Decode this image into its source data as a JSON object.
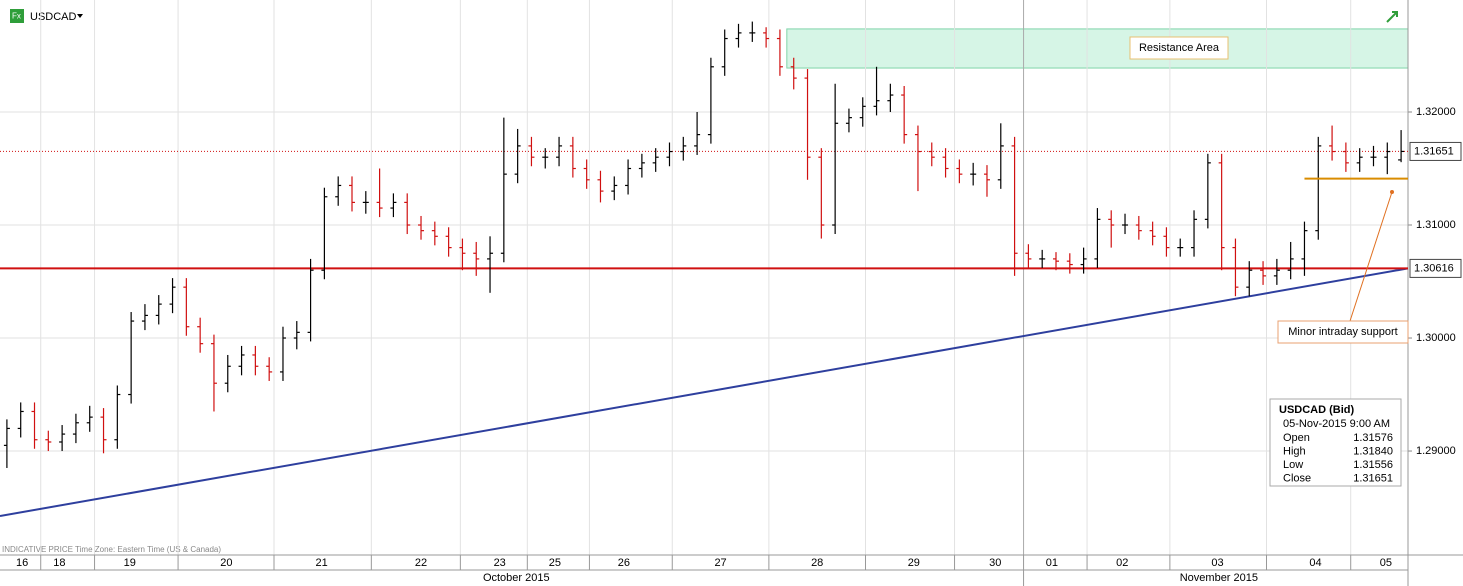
{
  "chart_data": {
    "type": "ohlc",
    "symbol": "USDCAD",
    "footnote": "INDICATIVE PRICE   Time Zone: Eastern Time (US & Canada)",
    "up_color": "#000000",
    "down_color": "#d01010",
    "ylim": [
      1.2808,
      1.32991
    ],
    "xlim": [
      -0.5,
      101.5
    ],
    "yticks": [
      {
        "value": 1.29,
        "label": "1.29000"
      },
      {
        "value": 1.3,
        "label": "1.30000"
      },
      {
        "value": 1.31,
        "label": "1.31000"
      },
      {
        "value": 1.32,
        "label": "1.32000"
      }
    ],
    "grid": true,
    "xticks": [
      {
        "value": 1.1,
        "label": "16"
      },
      {
        "value": 3.8,
        "label": "18"
      },
      {
        "value": 8.9,
        "label": "19"
      },
      {
        "value": 15.9,
        "label": "20"
      },
      {
        "value": 22.8,
        "label": "21"
      },
      {
        "value": 30.0,
        "label": "22"
      },
      {
        "value": 35.7,
        "label": "23"
      },
      {
        "value": 39.7,
        "label": "25"
      },
      {
        "value": 44.7,
        "label": "26"
      },
      {
        "value": 51.7,
        "label": "27"
      },
      {
        "value": 58.7,
        "label": "28"
      },
      {
        "value": 65.7,
        "label": "29"
      },
      {
        "value": 71.6,
        "label": "30"
      },
      {
        "value": 75.7,
        "label": "01"
      },
      {
        "value": 80.8,
        "label": "02"
      },
      {
        "value": 87.7,
        "label": "03"
      },
      {
        "value": 94.8,
        "label": "04"
      },
      {
        "value": 99.9,
        "label": "05"
      }
    ],
    "months": [
      {
        "value": 36.9,
        "label": "October 2015"
      },
      {
        "value": 87.8,
        "label": "November 2015"
      }
    ],
    "open": [
      1.2905,
      1.292,
      1.2935,
      1.291,
      1.2908,
      1.2915,
      1.2925,
      1.293,
      1.291,
      1.295,
      1.3015,
      1.302,
      1.303,
      1.3045,
      1.301,
      1.2995,
      1.296,
      1.2975,
      1.2985,
      1.2975,
      1.297,
      1.3,
      1.3005,
      1.306,
      1.3125,
      1.3135,
      1.312,
      1.312,
      1.3115,
      1.312,
      1.31,
      1.3095,
      1.309,
      1.308,
      1.3075,
      1.307,
      1.3075,
      1.3145,
      1.317,
      1.316,
      1.316,
      1.317,
      1.315,
      1.314,
      1.313,
      1.3135,
      1.315,
      1.3155,
      1.316,
      1.3165,
      1.317,
      1.318,
      1.324,
      1.3265,
      1.327,
      1.327,
      1.3265,
      1.324,
      1.323,
      1.316,
      1.31,
      1.319,
      1.3195,
      1.3205,
      1.321,
      1.3215,
      1.318,
      1.3165,
      1.316,
      1.315,
      1.3145,
      1.3145,
      1.314,
      1.317,
      1.3075,
      1.307,
      1.307,
      1.3068,
      1.3065,
      1.307,
      1.3105,
      1.31,
      1.31,
      1.3095,
      1.309,
      1.308,
      1.308,
      1.3105,
      1.3155,
      1.308,
      1.3045,
      1.306,
      1.3055,
      1.306,
      1.307,
      1.3095,
      1.317,
      1.3165,
      1.3155,
      1.316,
      1.316,
      1.31576
    ],
    "high": [
      1.2928,
      1.2943,
      1.2943,
      1.2918,
      1.2923,
      1.2933,
      1.294,
      1.2938,
      1.2958,
      1.3023,
      1.303,
      1.3038,
      1.3053,
      1.3053,
      1.3018,
      1.3003,
      1.2985,
      1.2993,
      1.2993,
      1.2983,
      1.301,
      1.3015,
      1.307,
      1.3133,
      1.3143,
      1.3143,
      1.313,
      1.315,
      1.3128,
      1.3128,
      1.3108,
      1.3103,
      1.3098,
      1.3088,
      1.3085,
      1.309,
      1.3195,
      1.3185,
      1.3178,
      1.3168,
      1.3178,
      1.3178,
      1.3158,
      1.3148,
      1.3143,
      1.3158,
      1.3163,
      1.3168,
      1.3173,
      1.3178,
      1.32,
      1.3248,
      1.3273,
      1.3278,
      1.328,
      1.3275,
      1.3273,
      1.3248,
      1.3238,
      1.3168,
      1.3225,
      1.3203,
      1.3213,
      1.324,
      1.3225,
      1.3223,
      1.3188,
      1.3173,
      1.3168,
      1.3158,
      1.3155,
      1.3153,
      1.319,
      1.3178,
      1.3083,
      1.3078,
      1.3076,
      1.3075,
      1.308,
      1.3115,
      1.3113,
      1.311,
      1.3108,
      1.3103,
      1.3098,
      1.3088,
      1.3113,
      1.3163,
      1.3163,
      1.3088,
      1.3068,
      1.3068,
      1.307,
      1.3085,
      1.3103,
      1.3178,
      1.3188,
      1.3173,
      1.3168,
      1.317,
      1.3173,
      1.3184
    ],
    "low": [
      1.2885,
      1.2912,
      1.2902,
      1.29,
      1.29,
      1.2907,
      1.2917,
      1.2898,
      1.2902,
      1.2942,
      1.3007,
      1.3012,
      1.3022,
      1.3002,
      1.2987,
      1.2935,
      1.2952,
      1.2967,
      1.2967,
      1.2962,
      1.2962,
      1.299,
      1.2997,
      1.3052,
      1.3117,
      1.3112,
      1.311,
      1.3107,
      1.3107,
      1.3092,
      1.3087,
      1.3082,
      1.3072,
      1.306,
      1.3055,
      1.304,
      1.3067,
      1.3137,
      1.3152,
      1.315,
      1.3152,
      1.3142,
      1.3132,
      1.312,
      1.3122,
      1.3127,
      1.3142,
      1.3147,
      1.3152,
      1.3157,
      1.3162,
      1.3172,
      1.3232,
      1.3257,
      1.3262,
      1.3257,
      1.3232,
      1.322,
      1.314,
      1.3088,
      1.3092,
      1.3182,
      1.3187,
      1.3197,
      1.32,
      1.3172,
      1.313,
      1.3152,
      1.3142,
      1.3137,
      1.3135,
      1.3125,
      1.3132,
      1.3055,
      1.3062,
      1.3062,
      1.306,
      1.3057,
      1.3057,
      1.3062,
      1.308,
      1.3092,
      1.3087,
      1.3082,
      1.3072,
      1.3072,
      1.3072,
      1.3097,
      1.306,
      1.3037,
      1.3037,
      1.3047,
      1.3047,
      1.3052,
      1.3055,
      1.3087,
      1.3157,
      1.3147,
      1.3147,
      1.3152,
      1.3145,
      1.31556
    ],
    "close": [
      1.292,
      1.2935,
      1.291,
      1.2908,
      1.2915,
      1.2925,
      1.293,
      1.291,
      1.295,
      1.3015,
      1.302,
      1.303,
      1.3045,
      1.301,
      1.2995,
      1.296,
      1.2975,
      1.2985,
      1.2975,
      1.297,
      1.3,
      1.3005,
      1.306,
      1.3125,
      1.3135,
      1.312,
      1.312,
      1.3115,
      1.312,
      1.31,
      1.3095,
      1.309,
      1.308,
      1.3075,
      1.307,
      1.3075,
      1.3145,
      1.317,
      1.316,
      1.316,
      1.317,
      1.315,
      1.314,
      1.313,
      1.3135,
      1.315,
      1.3155,
      1.316,
      1.3165,
      1.317,
      1.318,
      1.324,
      1.3265,
      1.327,
      1.327,
      1.3265,
      1.324,
      1.323,
      1.316,
      1.31,
      1.319,
      1.3195,
      1.3205,
      1.321,
      1.3215,
      1.318,
      1.3165,
      1.316,
      1.315,
      1.3145,
      1.3145,
      1.314,
      1.317,
      1.3075,
      1.307,
      1.307,
      1.3068,
      1.3065,
      1.307,
      1.3105,
      1.31,
      1.31,
      1.3095,
      1.309,
      1.308,
      1.308,
      1.3105,
      1.3155,
      1.308,
      1.3045,
      1.306,
      1.3055,
      1.306,
      1.307,
      1.3095,
      1.317,
      1.3165,
      1.3155,
      1.316,
      1.316,
      1.3165,
      1.31651
    ],
    "price_markers": [
      {
        "value": 1.31651,
        "style": "dotted",
        "color": "#d01010"
      },
      {
        "value": 1.30616,
        "style": "solid",
        "color": "#d01010"
      }
    ],
    "trendline": {
      "x": [
        -0.5,
        101.5
      ],
      "y": [
        1.28425,
        1.30616
      ],
      "color": "#2e3f9e"
    },
    "support_line": {
      "x": [
        94,
        101.5
      ],
      "y": 1.3141,
      "color": "#d98c00"
    },
    "resistance_zone": {
      "x": [
        56.5,
        101.5
      ],
      "y": [
        1.32389,
        1.32735
      ],
      "color": "#d6f5e6",
      "label": "Resistance Area"
    },
    "support_label": "Minor intraday support",
    "info_box": {
      "title": "USDCAD (Bid)",
      "date": "05-Nov-2015 9:00 AM",
      "rows": [
        [
          "Open",
          "1.31576"
        ],
        [
          "High",
          "1.31840"
        ],
        [
          "Low",
          "1.31556"
        ],
        [
          "Close",
          "1.31651"
        ]
      ]
    }
  }
}
